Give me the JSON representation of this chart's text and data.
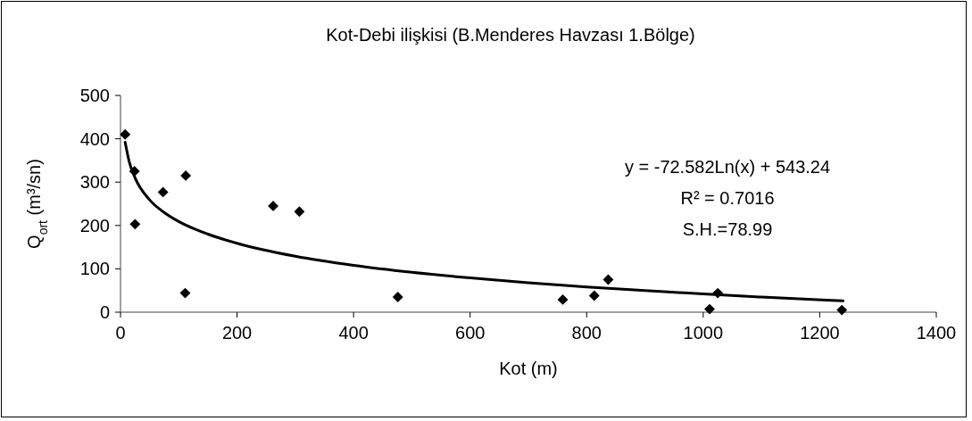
{
  "chart_data": {
    "type": "scatter",
    "title": "Kot-Debi ilişkisi (B.Menderes Havzası 1.Bölge)",
    "xlabel": "Kot (m)",
    "ylabel": "Q$_{ort}$ (m³/sn)",
    "xlim": [
      0,
      1400
    ],
    "xticks": [
      0,
      200,
      400,
      600,
      800,
      1000,
      1200,
      1400
    ],
    "ylim": [
      0,
      500
    ],
    "yticks": [
      0,
      100,
      200,
      300,
      400,
      500
    ],
    "grid": false,
    "marker": "diamond",
    "annotations": [
      "y = -72.582Ln(x) + 543.24",
      "R² = 0.7016",
      "S.H.=78.99"
    ],
    "series": [
      {
        "color": "#000000",
        "x": [
          8,
          24,
          25,
          73,
          112,
          111,
          262,
          307,
          476,
          759,
          813,
          837,
          1011,
          1025,
          1238
        ],
        "values": [
          410,
          325,
          203,
          277,
          315,
          44,
          245,
          232,
          35,
          29,
          38,
          75,
          7,
          44,
          5
        ]
      },
      {
        "type": "line",
        "color": "#000000",
        "marker": "none",
        "line_style": "solid",
        "x": [
          8,
          15,
          25,
          50,
          75,
          100,
          150,
          200,
          300,
          400,
          500,
          600,
          700,
          800,
          900,
          1000,
          1100,
          1240
        ],
        "values": [
          392,
          347,
          310,
          259,
          230,
          209,
          180,
          159,
          129,
          108,
          92,
          79,
          68,
          58,
          50,
          42,
          35,
          26
        ]
      }
    ]
  }
}
